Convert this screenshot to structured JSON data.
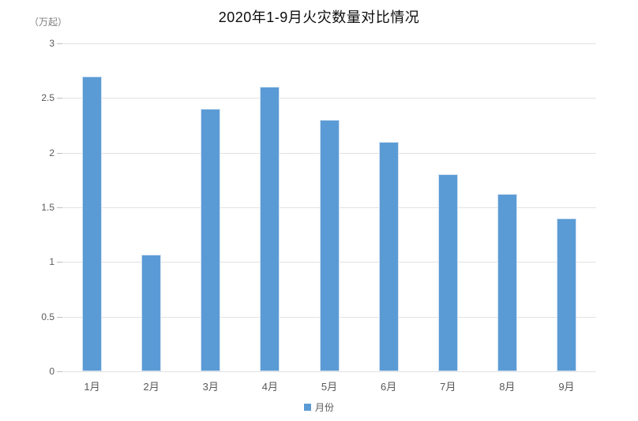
{
  "chart": {
    "title": "2020年1-9月火灾数量对比情况",
    "unit_label": "（万起）",
    "legend": {
      "label": "月份"
    }
  },
  "chart_data": {
    "type": "bar",
    "title": "2020年1-9月火灾数量对比情况",
    "categories": [
      "1月",
      "2月",
      "3月",
      "4月",
      "5月",
      "6月",
      "7月",
      "8月",
      "9月"
    ],
    "values": [
      2.7,
      1.07,
      2.4,
      2.6,
      2.3,
      2.1,
      1.8,
      1.62,
      1.4
    ],
    "series_name": "月份",
    "xlabel": "",
    "ylabel": "（万起）",
    "ylim": [
      0,
      3
    ],
    "ytick_step": 0.5,
    "yticks": [
      "0",
      "0.5",
      "1",
      "1.5",
      "2",
      "2.5",
      "3"
    ],
    "grid": true,
    "legend_entries": [
      "月份"
    ],
    "legend_position": "bottom-center",
    "colors": {
      "bar": "#5b9bd5",
      "bar_border": "#d3e3f3",
      "gridline": "#e2e2e2",
      "tick": "#bfbfbf",
      "axis_text": "#595959",
      "unit_text": "#7f7f7f",
      "title_text": "#0d0d0d"
    }
  }
}
